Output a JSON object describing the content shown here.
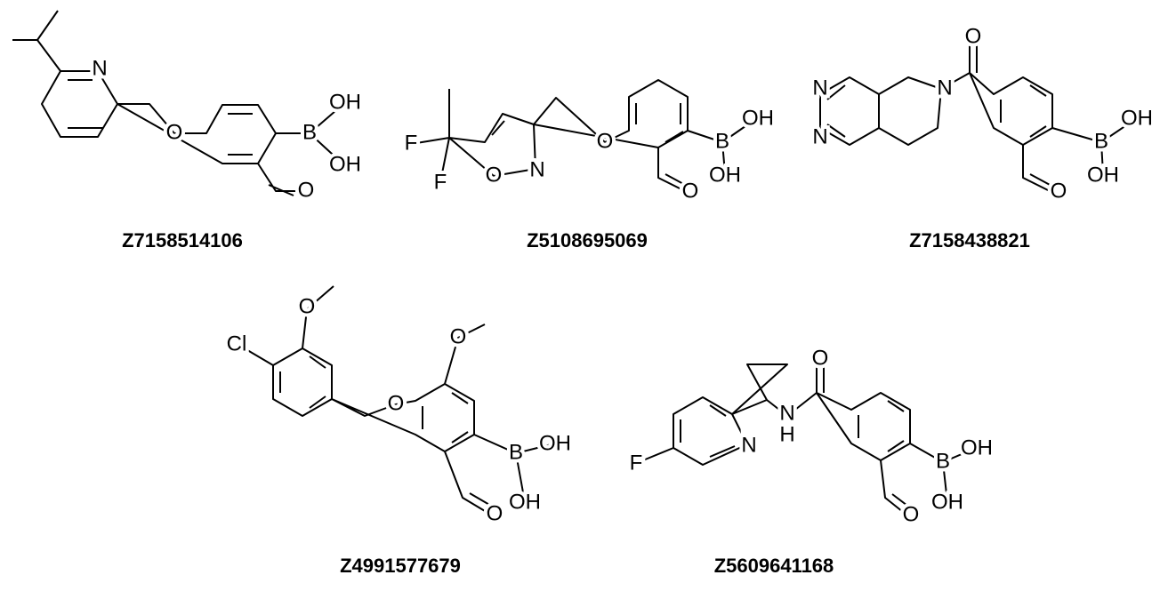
{
  "molecules": [
    {
      "id": "Z7158514106",
      "atoms": [
        "N",
        "O",
        "B",
        "OH",
        "OH",
        "O"
      ]
    },
    {
      "id": "Z5108695069",
      "atoms": [
        "F",
        "F",
        "O",
        "N",
        "O",
        "B",
        "OH",
        "OH",
        "O"
      ]
    },
    {
      "id": "Z7158438821",
      "atoms": [
        "N",
        "N",
        "N",
        "O",
        "B",
        "OH",
        "OH",
        "O"
      ]
    },
    {
      "id": "Z4991577679",
      "atoms": [
        "O",
        "Cl",
        "O",
        "O",
        "B",
        "OH",
        "OH",
        "O"
      ]
    },
    {
      "id": "Z5609641168",
      "atoms": [
        "F",
        "N",
        "N",
        "H",
        "O",
        "B",
        "OH",
        "OH",
        "O"
      ]
    }
  ]
}
